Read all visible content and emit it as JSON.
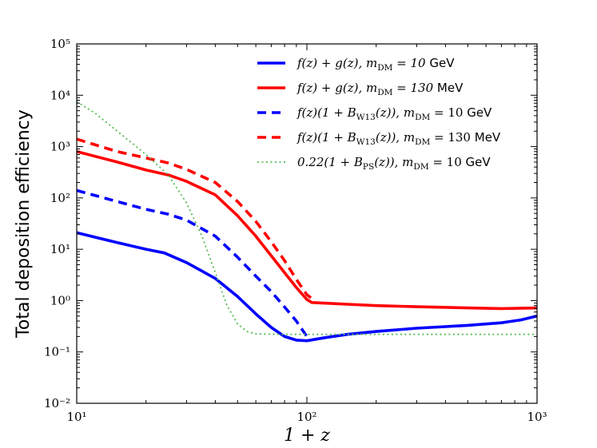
{
  "chart_data": {
    "type": "line",
    "xlabel": "1 + z",
    "ylabel": "Total deposition efficiency",
    "xscale": "log",
    "yscale": "log",
    "xlim": [
      10,
      1000
    ],
    "ylim": [
      0.01,
      100000
    ],
    "x_ticks": [
      {
        "value": 10,
        "label": "10¹"
      },
      {
        "value": 100,
        "label": "10²"
      },
      {
        "value": 1000,
        "label": "10³"
      }
    ],
    "y_ticks": [
      {
        "value": 0.01,
        "label": "10⁻²"
      },
      {
        "value": 0.1,
        "label": "10⁻¹"
      },
      {
        "value": 1,
        "label": "10⁰"
      },
      {
        "value": 10,
        "label": "10¹"
      },
      {
        "value": 100,
        "label": "10²"
      },
      {
        "value": 1000,
        "label": "10³"
      },
      {
        "value": 10000,
        "label": "10⁴"
      },
      {
        "value": 100000,
        "label": "10⁵"
      }
    ],
    "grid": false,
    "legend_position": "top-right",
    "series": [
      {
        "name": "f(z) + g(z), m_DM = 10 GeV",
        "color": "#0000ff",
        "style": "solid",
        "points": [
          [
            10,
            21
          ],
          [
            15,
            13.5
          ],
          [
            20,
            10
          ],
          [
            24,
            8.5
          ],
          [
            30,
            5.5
          ],
          [
            40,
            2.7
          ],
          [
            50,
            1.2
          ],
          [
            60,
            0.55
          ],
          [
            70,
            0.3
          ],
          [
            80,
            0.2
          ],
          [
            90,
            0.17
          ],
          [
            100,
            0.165
          ],
          [
            120,
            0.19
          ],
          [
            150,
            0.22
          ],
          [
            200,
            0.25
          ],
          [
            300,
            0.29
          ],
          [
            500,
            0.33
          ],
          [
            700,
            0.37
          ],
          [
            850,
            0.42
          ],
          [
            1000,
            0.5
          ]
        ]
      },
      {
        "name": "f(z) + g(z), m_DM = 130 MeV",
        "color": "#ff0000",
        "style": "solid",
        "points": [
          [
            10,
            800
          ],
          [
            15,
            500
          ],
          [
            20,
            350
          ],
          [
            25,
            280
          ],
          [
            30,
            210
          ],
          [
            40,
            115
          ],
          [
            50,
            45
          ],
          [
            60,
            18
          ],
          [
            70,
            7.5
          ],
          [
            80,
            3.5
          ],
          [
            90,
            1.8
          ],
          [
            100,
            1.05
          ],
          [
            105,
            0.92
          ],
          [
            150,
            0.85
          ],
          [
            200,
            0.8
          ],
          [
            300,
            0.76
          ],
          [
            500,
            0.72
          ],
          [
            700,
            0.7
          ],
          [
            1000,
            0.72
          ]
        ]
      },
      {
        "name": "f(z)(1 + B_W13(z)), m_DM = 10 GeV",
        "color": "#0000ff",
        "style": "dashed",
        "points": [
          [
            10,
            140
          ],
          [
            15,
            85
          ],
          [
            20,
            60
          ],
          [
            25,
            48
          ],
          [
            30,
            37
          ],
          [
            40,
            18
          ],
          [
            50,
            7
          ],
          [
            60,
            3
          ],
          [
            70,
            1.5
          ],
          [
            80,
            0.75
          ],
          [
            90,
            0.4
          ],
          [
            100,
            0.2
          ]
        ]
      },
      {
        "name": "f(z)(1 + B_W13(z)), m_DM = 130 MeV",
        "color": "#ff0000",
        "style": "dashed",
        "points": [
          [
            10,
            1400
          ],
          [
            15,
            800
          ],
          [
            20,
            600
          ],
          [
            25,
            480
          ],
          [
            30,
            360
          ],
          [
            40,
            200
          ],
          [
            50,
            85
          ],
          [
            60,
            35
          ],
          [
            70,
            14
          ],
          [
            80,
            6
          ],
          [
            90,
            2.6
          ],
          [
            100,
            1.3
          ],
          [
            105,
            1.1
          ]
        ]
      },
      {
        "name": "0.22(1 + B_PS(z)), m_DM = 10 GeV",
        "color": "#55bb55",
        "style": "dotted",
        "points": [
          [
            10,
            7500
          ],
          [
            12,
            4500
          ],
          [
            15,
            2000
          ],
          [
            20,
            700
          ],
          [
            25,
            280
          ],
          [
            30,
            80
          ],
          [
            35,
            18
          ],
          [
            40,
            3.5
          ],
          [
            45,
            0.8
          ],
          [
            50,
            0.35
          ],
          [
            55,
            0.25
          ],
          [
            60,
            0.225
          ],
          [
            80,
            0.22
          ],
          [
            100,
            0.22
          ],
          [
            1000,
            0.22
          ]
        ]
      }
    ]
  },
  "legend": [
    {
      "math": "f(z) + g(z), m",
      "sub": "DM",
      "rest": " = 10",
      "unit": " GeV",
      "color": "#0000ff",
      "style": "solid"
    },
    {
      "math": "f(z) + g(z), m",
      "sub": "DM",
      "rest": " = 130",
      "unit": " MeV",
      "color": "#ff0000",
      "style": "solid"
    },
    {
      "math": "f(z)(1 + B",
      "sub": "W13",
      "rest": "(z)), m",
      "sub2": "DM",
      "rest2": " = 10",
      "unit": " GeV",
      "color": "#0000ff",
      "style": "dashed"
    },
    {
      "math": "f(z)(1 + B",
      "sub": "W13",
      "rest": "(z)), m",
      "sub2": "DM",
      "rest2": " = 130",
      "unit": " MeV",
      "color": "#ff0000",
      "style": "dashed"
    },
    {
      "math": "0.22(1 + B",
      "sub": "PS",
      "rest": "(z)), m",
      "sub2": "DM",
      "rest2": " = 10",
      "unit": " GeV",
      "color": "#55bb55",
      "style": "dotted"
    }
  ]
}
